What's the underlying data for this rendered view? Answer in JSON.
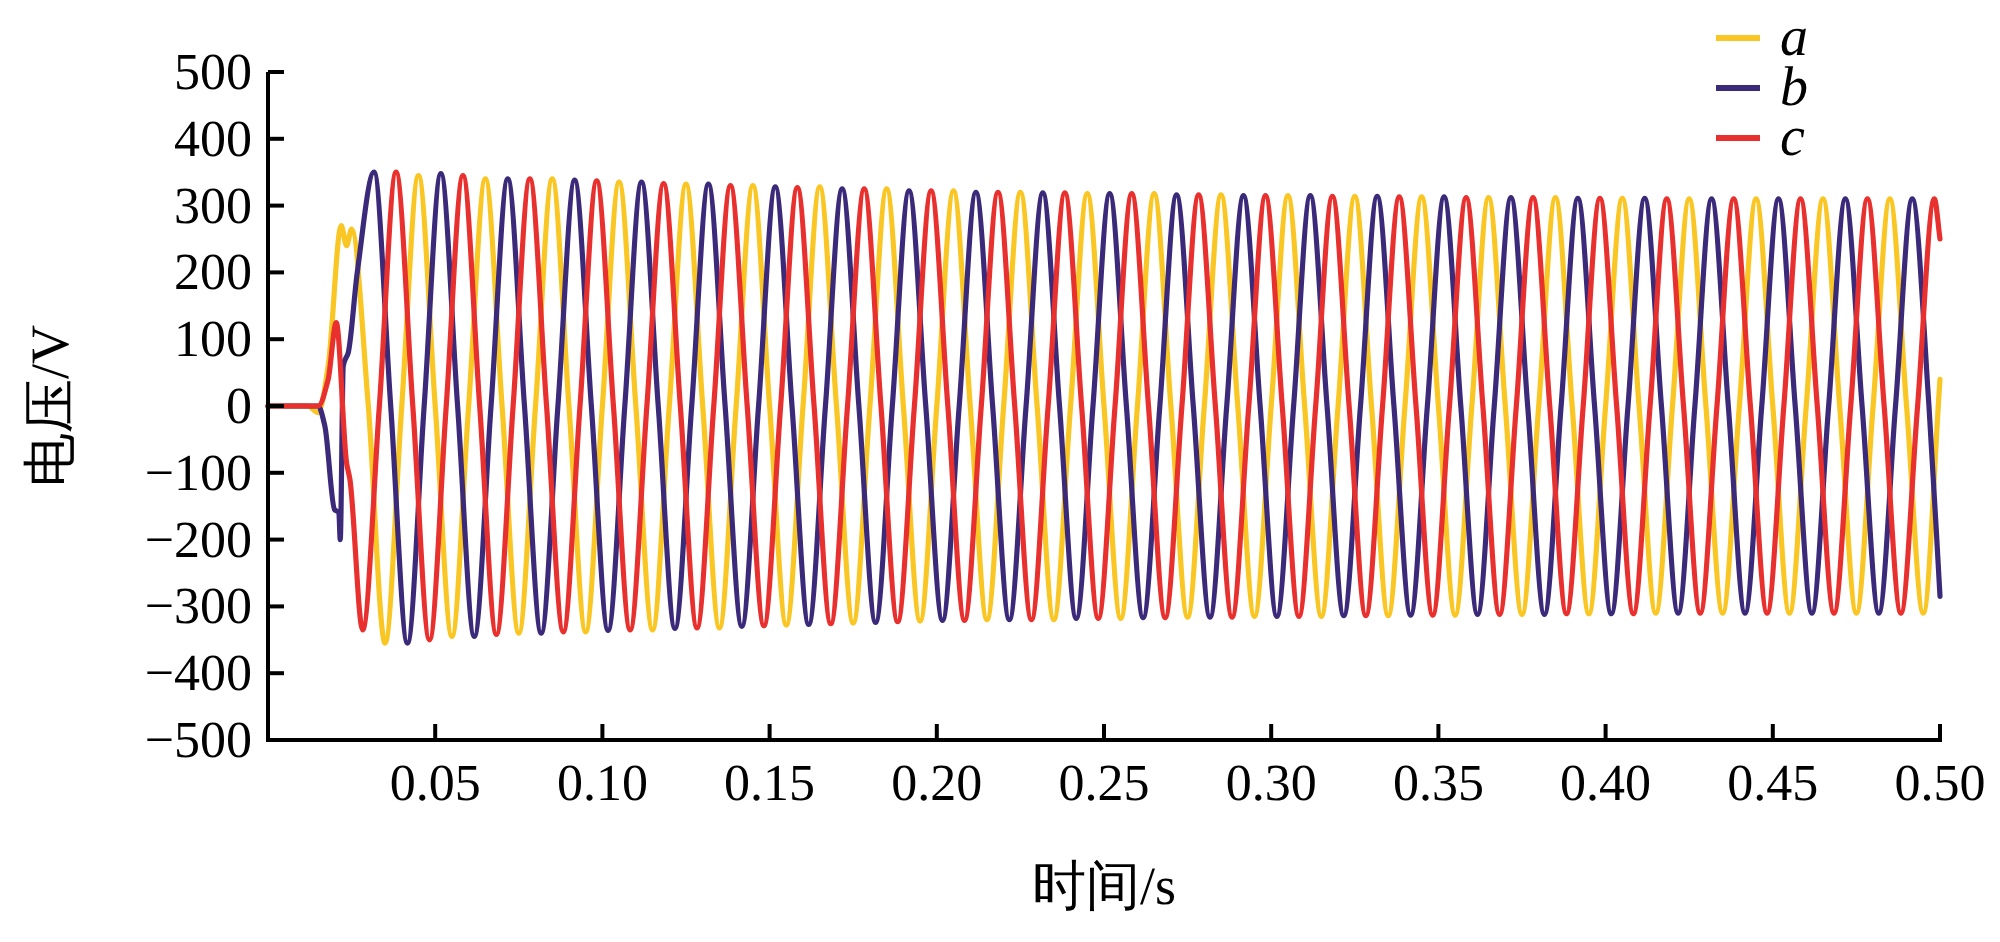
{
  "chart_data": {
    "type": "line",
    "xlabel": "时间/s",
    "ylabel": "电压/V",
    "xlim": [
      0,
      0.5
    ],
    "ylim": [
      -500,
      500
    ],
    "legend": "top right",
    "xticks": [
      {
        "value": 0.05,
        "label": "0.05"
      },
      {
        "value": 0.1,
        "label": "0.10"
      },
      {
        "value": 0.15,
        "label": "0.15"
      },
      {
        "value": 0.2,
        "label": "0.20"
      },
      {
        "value": 0.25,
        "label": "0.25"
      },
      {
        "value": 0.3,
        "label": "0.30"
      },
      {
        "value": 0.35,
        "label": "0.35"
      },
      {
        "value": 0.4,
        "label": "0.40"
      },
      {
        "value": 0.45,
        "label": "0.45"
      },
      {
        "value": 0.5,
        "label": "0.50"
      }
    ],
    "yticks": [
      {
        "value": -500,
        "label": "−500"
      },
      {
        "value": -400,
        "label": "−400"
      },
      {
        "value": -300,
        "label": "−300"
      },
      {
        "value": -200,
        "label": "−200"
      },
      {
        "value": -100,
        "label": "−100"
      },
      0,
      100,
      200,
      300,
      400,
      500
    ],
    "series": [
      {
        "name": "a",
        "color": "#f9c623",
        "x": [
          0,
          0.012,
          0.015,
          0.018,
          0.0219,
          0.0235,
          0.025,
          0.03,
          0.035,
          0.04,
          0.045,
          0.05,
          0.055,
          0.06,
          0.065,
          0.07,
          0.075,
          0.08,
          0.085,
          0.09,
          0.095,
          0.1,
          0.105,
          0.11,
          0.115,
          0.12,
          0.125,
          0.13,
          0.135,
          0.14,
          0.145,
          0.15,
          0.155,
          0.16,
          0.165,
          0.17,
          0.175,
          0.18,
          0.185,
          0.19,
          0.195,
          0.2,
          0.205,
          0.21,
          0.215,
          0.22,
          0.225,
          0.23,
          0.235,
          0.24,
          0.245,
          0.25,
          0.255,
          0.26,
          0.265,
          0.27,
          0.275,
          0.28,
          0.285,
          0.29,
          0.295,
          0.3,
          0.305,
          0.31,
          0.315,
          0.32,
          0.325,
          0.33,
          0.335,
          0.34,
          0.345,
          0.35,
          0.355,
          0.36,
          0.365,
          0.37,
          0.375,
          0.38,
          0.385,
          0.39,
          0.395,
          0.4,
          0.405,
          0.41,
          0.415,
          0.42,
          0.425,
          0.43,
          0.435,
          0.44,
          0.445,
          0.45,
          0.455,
          0.46,
          0.465,
          0.47,
          0.475,
          0.48,
          0.485,
          0.49,
          0.495,
          0.5
        ],
        "values": [
          0,
          0,
          -10,
          60,
          270,
          240,
          265,
          0,
          -355,
          0,
          345,
          0,
          -345,
          0,
          340,
          0,
          -340,
          0,
          340,
          0,
          -338,
          0,
          335,
          0,
          -335,
          0,
          332,
          0,
          -332,
          0,
          330,
          0,
          -328,
          0,
          328,
          0,
          -325,
          0,
          325,
          0,
          -322,
          0,
          322,
          0,
          -320,
          0,
          320,
          0,
          -320,
          0,
          318,
          0,
          -318,
          0,
          318,
          0,
          -316,
          0,
          316,
          0,
          -315,
          0,
          315,
          0,
          -315,
          0,
          314,
          0,
          -314,
          0,
          313,
          0,
          -313,
          0,
          312,
          0,
          -312,
          0,
          312,
          0,
          -311,
          0,
          311,
          0,
          -310,
          0,
          310,
          0,
          -310,
          0,
          310,
          0,
          -310,
          0,
          310,
          0,
          -310,
          0,
          310,
          0,
          -310,
          40
        ]
      },
      {
        "name": "b",
        "color": "#3b2a7a",
        "x": [
          0,
          0.015,
          0.017,
          0.0199,
          0.0212,
          0.0216,
          0.0225,
          0.024,
          0.0267,
          0.0317,
          0.0367,
          0.0417,
          0.0467,
          0.0517,
          0.0567,
          0.0617,
          0.0667,
          0.0717,
          0.0767,
          0.0817,
          0.0867,
          0.0917,
          0.0967,
          0.1017,
          0.1067,
          0.1117,
          0.1167,
          0.1217,
          0.1267,
          0.1317,
          0.1367,
          0.1417,
          0.1467,
          0.1517,
          0.1567,
          0.1617,
          0.1667,
          0.1717,
          0.1767,
          0.1817,
          0.1867,
          0.1917,
          0.1967,
          0.2017,
          0.2067,
          0.2117,
          0.2167,
          0.2217,
          0.2267,
          0.2317,
          0.2367,
          0.2417,
          0.2467,
          0.2517,
          0.2567,
          0.2617,
          0.2667,
          0.2717,
          0.2767,
          0.2817,
          0.2867,
          0.2917,
          0.2967,
          0.3017,
          0.3067,
          0.3117,
          0.3167,
          0.3217,
          0.3267,
          0.3317,
          0.3367,
          0.3417,
          0.3467,
          0.3517,
          0.3567,
          0.3617,
          0.3667,
          0.3717,
          0.3767,
          0.3817,
          0.3867,
          0.3917,
          0.3967,
          0.4017,
          0.4067,
          0.4117,
          0.4167,
          0.4217,
          0.4267,
          0.4317,
          0.4367,
          0.4417,
          0.4467,
          0.4517,
          0.4567,
          0.4617,
          0.4667,
          0.4717,
          0.4767,
          0.4817,
          0.4867,
          0.4917,
          0.4967,
          0.5
        ],
        "values": [
          0,
          0,
          -30,
          -155,
          -160,
          -200,
          60,
          80,
          200,
          350,
          0,
          -355,
          0,
          348,
          0,
          -345,
          0,
          340,
          0,
          -340,
          0,
          338,
          0,
          -336,
          0,
          335,
          0,
          -333,
          0,
          332,
          0,
          -330,
          0,
          328,
          0,
          -327,
          0,
          325,
          0,
          -324,
          0,
          322,
          0,
          -321,
          0,
          320,
          0,
          -320,
          0,
          319,
          0,
          -318,
          0,
          318,
          0,
          -317,
          0,
          316,
          0,
          -316,
          0,
          315,
          0,
          -315,
          0,
          315,
          0,
          -314,
          0,
          314,
          0,
          -313,
          0,
          313,
          0,
          -312,
          0,
          312,
          0,
          -312,
          0,
          311,
          0,
          -311,
          0,
          311,
          0,
          -310,
          0,
          310,
          0,
          -310,
          0,
          310,
          0,
          -310,
          0,
          310,
          0,
          -310,
          0,
          310,
          0,
          -285
        ]
      },
      {
        "name": "c",
        "color": "#e8302e",
        "x": [
          0,
          0.015,
          0.018,
          0.0204,
          0.0235,
          0.0245,
          0.0283,
          0.0333,
          0.0383,
          0.0433,
          0.0483,
          0.0533,
          0.0583,
          0.0633,
          0.0683,
          0.0733,
          0.0783,
          0.0833,
          0.0883,
          0.0933,
          0.0983,
          0.1033,
          0.1083,
          0.1133,
          0.1183,
          0.1233,
          0.1283,
          0.1333,
          0.1383,
          0.1433,
          0.1483,
          0.1533,
          0.1583,
          0.1633,
          0.1683,
          0.1733,
          0.1783,
          0.1833,
          0.1883,
          0.1933,
          0.1983,
          0.2033,
          0.2083,
          0.2133,
          0.2183,
          0.2233,
          0.2283,
          0.2333,
          0.2383,
          0.2433,
          0.2483,
          0.2533,
          0.2583,
          0.2633,
          0.2683,
          0.2733,
          0.2783,
          0.2833,
          0.2883,
          0.2933,
          0.2983,
          0.3033,
          0.3083,
          0.3133,
          0.3183,
          0.3233,
          0.3283,
          0.3333,
          0.3383,
          0.3433,
          0.3483,
          0.3533,
          0.3583,
          0.3633,
          0.3683,
          0.3733,
          0.3783,
          0.3833,
          0.3883,
          0.3933,
          0.3983,
          0.4033,
          0.4083,
          0.4133,
          0.4183,
          0.4233,
          0.4283,
          0.4333,
          0.4383,
          0.4433,
          0.4483,
          0.4533,
          0.4583,
          0.4633,
          0.4683,
          0.4733,
          0.4783,
          0.4833,
          0.4883,
          0.4933,
          0.4983,
          0.5
        ],
        "values": [
          0,
          0,
          40,
          125,
          -85,
          -110,
          -335,
          0,
          350,
          0,
          -350,
          0,
          345,
          0,
          -342,
          0,
          340,
          0,
          -338,
          0,
          337,
          0,
          -335,
          0,
          333,
          0,
          -332,
          0,
          330,
          0,
          -329,
          0,
          327,
          0,
          -326,
          0,
          325,
          0,
          -323,
          0,
          322,
          0,
          -321,
          0,
          320,
          0,
          -320,
          0,
          319,
          0,
          -318,
          0,
          318,
          0,
          -317,
          0,
          316,
          0,
          -316,
          0,
          315,
          0,
          -315,
          0,
          314,
          0,
          -314,
          0,
          313,
          0,
          -313,
          0,
          312,
          0,
          -312,
          0,
          312,
          0,
          -311,
          0,
          311,
          0,
          -311,
          0,
          310,
          0,
          -310,
          0,
          310,
          0,
          -310,
          0,
          310,
          0,
          -310,
          0,
          310,
          0,
          -310,
          0,
          310,
          250
        ]
      }
    ]
  }
}
